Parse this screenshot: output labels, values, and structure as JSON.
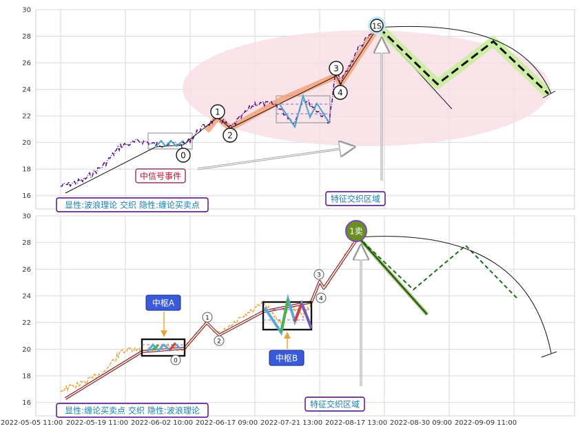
{
  "chart_data": [
    {
      "type": "line",
      "panel": "top",
      "ylim": [
        15,
        30
      ],
      "y_ticks": [
        16,
        18,
        20,
        22,
        24,
        26,
        28,
        30
      ],
      "grid": true,
      "wave_points": [
        {
          "label": "0",
          "x": 0.227,
          "y": 19.3
        },
        {
          "label": "1",
          "x": 0.318,
          "y": 21.5
        },
        {
          "label": "2",
          "x": 0.348,
          "y": 20.2
        },
        {
          "label": "3",
          "x": 0.555,
          "y": 25.0
        },
        {
          "label": "4",
          "x": 0.56,
          "y": 24.0
        },
        {
          "label": "1S",
          "x": 0.64,
          "y": 28.9
        }
      ],
      "annotations": {
        "event": "中信号事件",
        "legend": "显性:波浪理论 交织 隐性:缠论买卖点",
        "zone": "特征交织区域",
        "sell": "1S"
      },
      "colors": {
        "price": "#4b0082",
        "zone": "#f7dde3",
        "channel": "#f4a27a",
        "projection": "#c6ef9a"
      }
    },
    {
      "type": "line",
      "panel": "bottom",
      "ylim": [
        15,
        30
      ],
      "y_ticks": [
        16,
        18,
        20,
        22,
        24,
        26,
        28,
        30
      ],
      "grid": true,
      "wave_points": [
        {
          "label": "1",
          "x": 0.318,
          "y": 21.3
        },
        {
          "label": "2",
          "x": 0.348,
          "y": 20.2
        },
        {
          "label": "3",
          "x": 0.55,
          "y": 25.5
        },
        {
          "label": "4",
          "x": 0.553,
          "y": 24.0
        }
      ],
      "annotations": {
        "pivot_a": "中枢A",
        "pivot_b": "中枢B",
        "legend": "显性:缠论买卖点 交织 隐性:波浪理论",
        "zone": "特征交织区域",
        "sell": "1卖",
        "zero": "0"
      },
      "colors": {
        "price": "#e8a33a",
        "sell_badge": "#6b8e23",
        "pivot_label": "#3a5bd9"
      }
    }
  ],
  "x_axis_labels": [
    "2022-05-05 11:00",
    "2022-05-19 11:00",
    "2022-06-02 10:00",
    "2022-06-17 09:00",
    "2022-07-21 13:00",
    "2022-08-17 13:00",
    "2022-08-30 09:00",
    "2022-09-09 11:00"
  ]
}
